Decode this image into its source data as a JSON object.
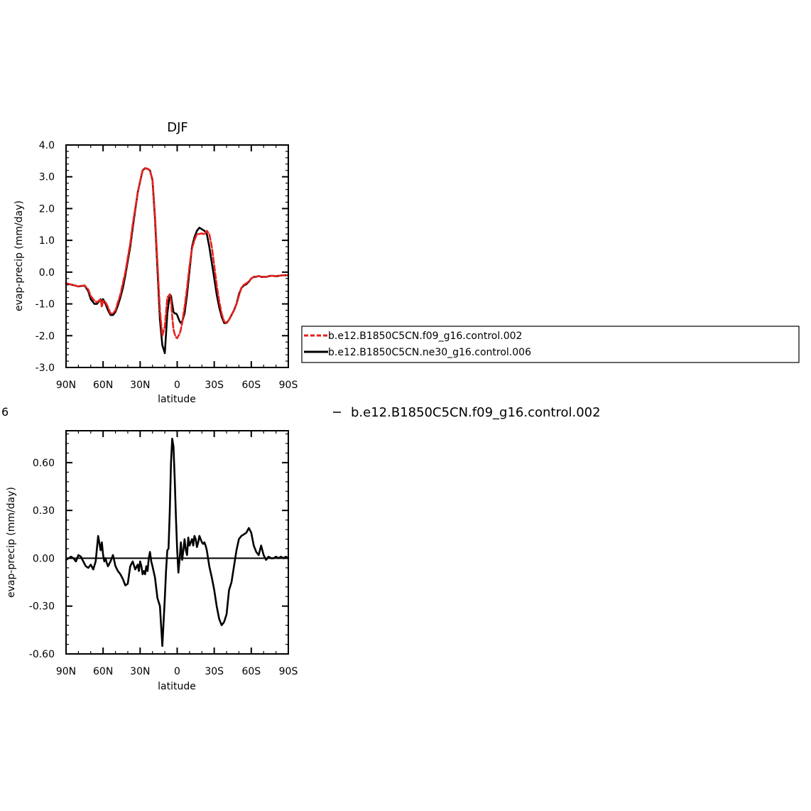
{
  "chart_data": [
    {
      "type": "line",
      "title": "DJF",
      "xlabel": "latitude",
      "ylabel": "evap-precip  (mm/day)",
      "xlim": [
        90,
        -90
      ],
      "ylim": [
        -3.0,
        4.0
      ],
      "x_ticks": [
        90,
        60,
        30,
        0,
        -30,
        -60,
        -90
      ],
      "x_tick_labels": [
        "90N",
        "60N",
        "30N",
        "0",
        "30S",
        "60S",
        "90S"
      ],
      "y_ticks": [
        -3.0,
        -2.0,
        -1.0,
        0.0,
        1.0,
        2.0,
        3.0,
        4.0
      ],
      "y_tick_labels": [
        "-3.0",
        "-2.0",
        "-1.0",
        "0.0",
        "1.0",
        "2.0",
        "3.0",
        "4.0"
      ],
      "legend_position": "right",
      "series": [
        {
          "name": "b.e12.B1850C5CN.f09_g16.control.002",
          "color": "#e8201c",
          "dash": "dashed",
          "x": [
            90,
            85,
            80,
            75,
            72,
            70,
            67,
            65,
            62,
            61,
            60,
            58,
            56,
            54,
            52,
            50,
            48,
            46,
            44,
            42,
            40,
            38,
            36,
            34,
            32,
            30,
            28,
            26,
            24,
            22,
            20,
            18,
            16,
            14,
            12,
            10,
            8,
            6,
            5,
            4,
            3,
            2,
            1,
            0,
            -1,
            -2,
            -3,
            -4,
            -6,
            -8,
            -10,
            -12,
            -14,
            -16,
            -18,
            -20,
            -22,
            -24,
            -26,
            -28,
            -30,
            -32,
            -34,
            -36,
            -38,
            -40,
            -42,
            -44,
            -46,
            -48,
            -50,
            -52,
            -54,
            -56,
            -58,
            -60,
            -62,
            -64,
            -66,
            -68,
            -70,
            -72,
            -75,
            -78,
            -80,
            -82,
            -85,
            -88,
            -90
          ],
          "y": [
            -0.35,
            -0.4,
            -0.45,
            -0.42,
            -0.55,
            -0.75,
            -0.9,
            -0.95,
            -0.85,
            -1.1,
            -0.9,
            -0.95,
            -1.1,
            -1.3,
            -1.3,
            -1.2,
            -0.95,
            -0.7,
            -0.35,
            0.0,
            0.45,
            0.9,
            1.5,
            2.0,
            2.5,
            2.85,
            3.2,
            3.27,
            3.25,
            3.2,
            2.9,
            1.8,
            0.3,
            -1.2,
            -2.0,
            -1.7,
            -0.8,
            -0.7,
            -0.9,
            -1.4,
            -1.8,
            -1.95,
            -2.05,
            -2.08,
            -2.0,
            -1.95,
            -1.8,
            -1.6,
            -1.1,
            -0.5,
            0.2,
            0.75,
            1.0,
            1.2,
            1.2,
            1.22,
            1.18,
            1.3,
            1.2,
            0.8,
            0.2,
            -0.4,
            -0.9,
            -1.3,
            -1.55,
            -1.6,
            -1.5,
            -1.35,
            -1.2,
            -1.0,
            -0.75,
            -0.5,
            -0.4,
            -0.35,
            -0.3,
            -0.2,
            -0.15,
            -0.15,
            -0.12,
            -0.15,
            -0.15,
            -0.15,
            -0.12,
            -0.12,
            -0.13,
            -0.12,
            -0.1,
            -0.1,
            -0.1
          ]
        },
        {
          "name": "b.e12.B1850C5CN.ne30_g16.control.006",
          "color": "#000000",
          "dash": "solid",
          "x": [
            90,
            85,
            80,
            75,
            72,
            70,
            67,
            65,
            62,
            61,
            60,
            58,
            56,
            54,
            52,
            50,
            48,
            46,
            44,
            42,
            40,
            38,
            36,
            34,
            32,
            30,
            28,
            26,
            24,
            22,
            20,
            18,
            16,
            14,
            12,
            10,
            8,
            6,
            5,
            4,
            3,
            2,
            1,
            0,
            -1,
            -2,
            -3,
            -4,
            -6,
            -8,
            -10,
            -12,
            -14,
            -16,
            -18,
            -20,
            -22,
            -24,
            -26,
            -28,
            -30,
            -32,
            -34,
            -36,
            -38,
            -40,
            -42,
            -44,
            -46,
            -48,
            -50,
            -52,
            -54,
            -56,
            -58,
            -60,
            -62,
            -64,
            -66,
            -68,
            -70,
            -72,
            -75,
            -78,
            -80,
            -82,
            -85,
            -88,
            -90
          ],
          "y": [
            -0.35,
            -0.4,
            -0.45,
            -0.42,
            -0.6,
            -0.85,
            -1.0,
            -1.0,
            -0.85,
            -0.95,
            -0.85,
            -1.0,
            -1.2,
            -1.35,
            -1.35,
            -1.25,
            -1.05,
            -0.8,
            -0.5,
            -0.1,
            0.35,
            0.8,
            1.4,
            1.95,
            2.5,
            2.85,
            3.2,
            3.27,
            3.25,
            3.2,
            2.9,
            1.7,
            0.1,
            -1.5,
            -2.3,
            -2.55,
            -1.3,
            -0.7,
            -0.75,
            -1.0,
            -1.25,
            -1.3,
            -1.3,
            -1.35,
            -1.45,
            -1.55,
            -1.6,
            -1.55,
            -1.3,
            -0.7,
            0.05,
            0.8,
            1.1,
            1.3,
            1.4,
            1.35,
            1.3,
            1.2,
            0.8,
            0.3,
            -0.2,
            -0.7,
            -1.1,
            -1.4,
            -1.6,
            -1.6,
            -1.5,
            -1.35,
            -1.2,
            -1.0,
            -0.7,
            -0.5,
            -0.42,
            -0.38,
            -0.3,
            -0.2,
            -0.15,
            -0.15,
            -0.12,
            -0.15,
            -0.15,
            -0.15,
            -0.12,
            -0.12,
            -0.13,
            -0.12,
            -0.1,
            -0.1,
            -0.1
          ]
        }
      ]
    },
    {
      "type": "line",
      "title": "",
      "xlabel": "latitude",
      "ylabel": "evap-precip  (mm/day)",
      "xlim": [
        90,
        -90
      ],
      "ylim": [
        -0.6,
        0.8
      ],
      "x_ticks": [
        90,
        60,
        30,
        0,
        -30,
        -60,
        -90
      ],
      "x_tick_labels": [
        "90N",
        "60N",
        "30N",
        "0",
        "30S",
        "60S",
        "90S"
      ],
      "y_ticks": [
        -0.6,
        -0.3,
        0.0,
        0.3,
        0.6
      ],
      "y_tick_labels": [
        "-0.60",
        "-0.30",
        "0.00",
        "0.30",
        "0.60"
      ],
      "legend_text": "b.e12.B1850C5CN.f09_g16.control.002",
      "left_fragment": "6",
      "series": [
        {
          "name": "",
          "color": "#000000",
          "dash": "solid",
          "x": [
            90,
            88,
            86,
            84,
            82,
            80,
            78,
            76,
            74,
            72,
            70,
            68,
            66,
            64,
            62,
            61,
            60,
            59,
            58,
            57,
            56,
            54,
            52,
            50,
            48,
            46,
            44,
            42,
            40,
            38,
            36,
            34,
            32,
            31,
            30,
            29,
            28,
            27,
            26,
            25,
            24,
            23,
            22,
            21,
            20,
            18,
            16,
            14,
            12,
            10,
            9,
            8,
            7,
            6,
            5,
            4,
            3,
            2,
            1,
            0,
            -1,
            -2,
            -3,
            -4,
            -5,
            -6,
            -7,
            -8,
            -9,
            -10,
            -11,
            -12,
            -13,
            -14,
            -15,
            -16,
            -17,
            -18,
            -19,
            -20,
            -21,
            -22,
            -23,
            -24,
            -25,
            -26,
            -28,
            -30,
            -32,
            -34,
            -36,
            -38,
            -40,
            -42,
            -44,
            -46,
            -48,
            -50,
            -52,
            -54,
            -56,
            -58,
            -60,
            -62,
            -64,
            -66,
            -68,
            -70,
            -72,
            -74,
            -76,
            -78,
            -80,
            -82,
            -84,
            -86,
            -88,
            -90
          ],
          "y": [
            -0.01,
            0.0,
            0.01,
            0.0,
            -0.02,
            0.02,
            0.01,
            -0.02,
            -0.05,
            -0.06,
            -0.04,
            -0.07,
            -0.02,
            0.14,
            0.05,
            0.1,
            0.02,
            -0.02,
            0.0,
            -0.03,
            -0.05,
            -0.02,
            0.02,
            -0.05,
            -0.08,
            -0.1,
            -0.13,
            -0.17,
            -0.16,
            -0.05,
            -0.02,
            -0.07,
            -0.04,
            -0.08,
            -0.02,
            -0.05,
            -0.1,
            -0.08,
            -0.1,
            -0.05,
            -0.08,
            0.0,
            0.04,
            -0.02,
            -0.05,
            -0.12,
            -0.25,
            -0.3,
            -0.55,
            -0.25,
            -0.08,
            0.05,
            0.06,
            0.3,
            0.6,
            0.75,
            0.7,
            0.5,
            0.25,
            0.05,
            -0.09,
            0.0,
            0.1,
            -0.01,
            0.05,
            0.12,
            0.05,
            0.02,
            0.13,
            0.08,
            0.1,
            0.12,
            0.08,
            0.14,
            0.12,
            0.07,
            0.1,
            0.14,
            0.12,
            0.1,
            0.09,
            0.1,
            0.08,
            0.05,
            0.0,
            -0.05,
            -0.12,
            -0.2,
            -0.3,
            -0.38,
            -0.42,
            -0.4,
            -0.35,
            -0.2,
            -0.15,
            -0.05,
            0.05,
            0.12,
            0.14,
            0.15,
            0.16,
            0.19,
            0.16,
            0.08,
            0.04,
            0.02,
            0.08,
            0.02,
            -0.01,
            0.01,
            0.0,
            0.0,
            0.01,
            0.0,
            0.01,
            0.0,
            0.01,
            0.0
          ]
        }
      ]
    }
  ],
  "legends": {
    "top": [
      {
        "label": "b.e12.B1850C5CN.f09_g16.control.002"
      },
      {
        "label": "b.e12.B1850C5CN.ne30_g16.control.006"
      }
    ],
    "bottom": {
      "label": "b.e12.B1850C5CN.f09_g16.control.002"
    }
  }
}
